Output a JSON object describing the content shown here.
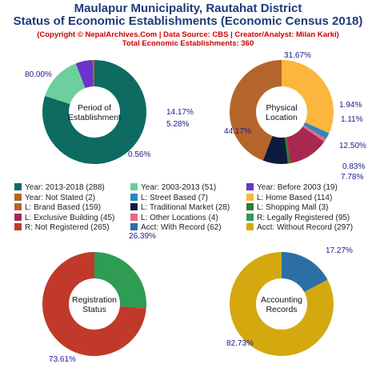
{
  "header": {
    "title1": "Maulapur Municipality, Rautahat District",
    "title2": "Status of Economic Establishments (Economic Census 2018)",
    "credit": "(Copyright © NepalArchives.Com | Data Source: CBS | Creator/Analyst: Milan Karki)",
    "total": "Total Economic Establishments: 360"
  },
  "chart_data": [
    {
      "type": "pie",
      "center_label": [
        "Period of",
        "Establishment"
      ],
      "slices": [
        {
          "name": "Year: 2013-2018",
          "value": 288,
          "pct": "80.00%",
          "color": "#0d6b61"
        },
        {
          "name": "Year: 2003-2013",
          "value": 51,
          "pct": "14.17%",
          "color": "#6dcf9b"
        },
        {
          "name": "Year: Before 2003",
          "value": 19,
          "pct": "5.28%",
          "color": "#6a35c9"
        },
        {
          "name": "Year: Not Stated",
          "value": 2,
          "pct": "0.56%",
          "color": "#b5651d"
        }
      ]
    },
    {
      "type": "pie",
      "center_label": [
        "Physical",
        "Location"
      ],
      "slices": [
        {
          "name": "L: Home Based",
          "value": 114,
          "pct": "31.67%",
          "color": "#fbb63e"
        },
        {
          "name": "L: Street Based",
          "value": 7,
          "pct": "1.94%",
          "color": "#2e86c1"
        },
        {
          "name": "L: Other Locations",
          "value": 4,
          "pct": "1.11%",
          "color": "#e06a80"
        },
        {
          "name": "L: Exclusive Building",
          "value": 45,
          "pct": "12.50%",
          "color": "#a8284f"
        },
        {
          "name": "L: Shopping Mall",
          "value": 3,
          "pct": "0.83%",
          "color": "#2e7d32"
        },
        {
          "name": "L: Traditional Market",
          "value": 28,
          "pct": "7.78%",
          "color": "#0d1b3e"
        },
        {
          "name": "L: Brand Based",
          "value": 159,
          "pct": "44.17%",
          "color": "#b5652c"
        }
      ]
    },
    {
      "type": "pie",
      "center_label": [
        "Registration",
        "Status"
      ],
      "slices": [
        {
          "name": "R: Legally Registered",
          "value": 95,
          "pct": "26.39%",
          "color": "#2e9c52"
        },
        {
          "name": "R: Not Registered",
          "value": 265,
          "pct": "73.61%",
          "color": "#c0392b"
        }
      ]
    },
    {
      "type": "pie",
      "center_label": [
        "Accounting",
        "Records"
      ],
      "slices": [
        {
          "name": "Acct: With Record",
          "value": 62,
          "pct": "17.27%",
          "color": "#2c6fa6"
        },
        {
          "name": "Acct: Without Record",
          "value": 297,
          "pct": "82.73%",
          "color": "#d4a90f"
        }
      ]
    }
  ],
  "legend": [
    {
      "label": "Year: 2013-2018 (288)",
      "color": "#0d6b61"
    },
    {
      "label": "Year: 2003-2013 (51)",
      "color": "#6dcf9b"
    },
    {
      "label": "Year: Before 2003 (19)",
      "color": "#6a35c9"
    },
    {
      "label": "Year: Not Stated (2)",
      "color": "#b5651d"
    },
    {
      "label": "L: Street Based (7)",
      "color": "#2e86c1"
    },
    {
      "label": "L: Home Based (114)",
      "color": "#fbb63e"
    },
    {
      "label": "L: Brand Based (159)",
      "color": "#b5652c"
    },
    {
      "label": "L: Traditional Market (28)",
      "color": "#0d1b3e"
    },
    {
      "label": "L: Shopping Mall (3)",
      "color": "#2e7d32"
    },
    {
      "label": "L: Exclusive Building (45)",
      "color": "#a8284f"
    },
    {
      "label": "L: Other Locations (4)",
      "color": "#e06a80"
    },
    {
      "label": "R: Legally Registered (95)",
      "color": "#2e9c52"
    },
    {
      "label": "R: Not Registered (265)",
      "color": "#c0392b"
    },
    {
      "label": "Acct: With Record (62)",
      "color": "#2c6fa6"
    },
    {
      "label": "Acct: Without Record (297)",
      "color": "#d4a90f"
    }
  ]
}
